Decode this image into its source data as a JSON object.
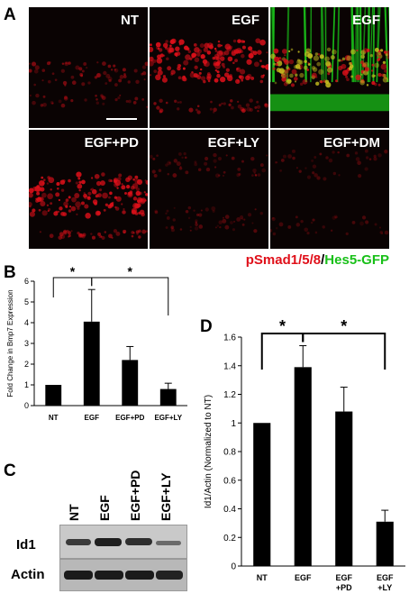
{
  "panel_a": {
    "letter": "A",
    "panels": [
      {
        "label": "NT"
      },
      {
        "label": "EGF"
      },
      {
        "label": "EGF"
      },
      {
        "label": "EGF+PD"
      },
      {
        "label": "EGF+LY"
      },
      {
        "label": "EGF+DM"
      }
    ],
    "legend": {
      "red": "pSmad1/5/8",
      "sep": "/",
      "green": "Hes5-GFP"
    },
    "colors": {
      "red": "#e0101a",
      "green": "#19c019"
    }
  },
  "panel_b": {
    "letter": "B"
  },
  "panel_c": {
    "letter": "C",
    "lanes": [
      "NT",
      "EGF",
      "EGF+PD",
      "EGF+LY"
    ],
    "rows": [
      {
        "label": "Id1"
      },
      {
        "label": "Actin"
      }
    ]
  },
  "panel_d": {
    "letter": "D"
  },
  "chart_data": [
    {
      "type": "bar",
      "categories": [
        "NT",
        "EGF",
        "EGF+PD",
        "EGF+LY"
      ],
      "values": [
        1.0,
        4.05,
        2.2,
        0.8
      ],
      "errors": [
        0.0,
        1.55,
        0.65,
        0.28
      ],
      "ylabel": "Fold Change in Bmp7 Expression",
      "ylim": [
        0,
        6
      ],
      "yticks": [
        "0",
        "1",
        "2",
        "3",
        "4",
        "5",
        "6"
      ],
      "significance": [
        {
          "from": "NT",
          "to": "EGF",
          "label": "*"
        },
        {
          "from": "EGF",
          "to": "EGF+LY",
          "label": "*"
        }
      ]
    },
    {
      "type": "bar",
      "categories": [
        "NT",
        "EGF",
        "EGF\n+PD",
        "EGF\n+LY"
      ],
      "category_lines": [
        [
          "NT"
        ],
        [
          "EGF"
        ],
        [
          "EGF",
          "+PD"
        ],
        [
          "EGF",
          "+LY"
        ]
      ],
      "values": [
        1.0,
        1.39,
        1.08,
        0.31
      ],
      "errors": [
        0.0,
        0.15,
        0.17,
        0.08
      ],
      "ylabel": "Id1/Actin (Normalized to NT)",
      "ylim": [
        0,
        1.6
      ],
      "yticks": [
        "0",
        "0.2",
        "0.4",
        "0.6",
        "0.8",
        "1",
        "1.2",
        "1.4",
        "1.6"
      ],
      "significance": [
        {
          "from": "NT",
          "to": "EGF",
          "label": "*"
        },
        {
          "from": "EGF",
          "to": "EGF\n+LY",
          "label": "*"
        }
      ]
    }
  ]
}
